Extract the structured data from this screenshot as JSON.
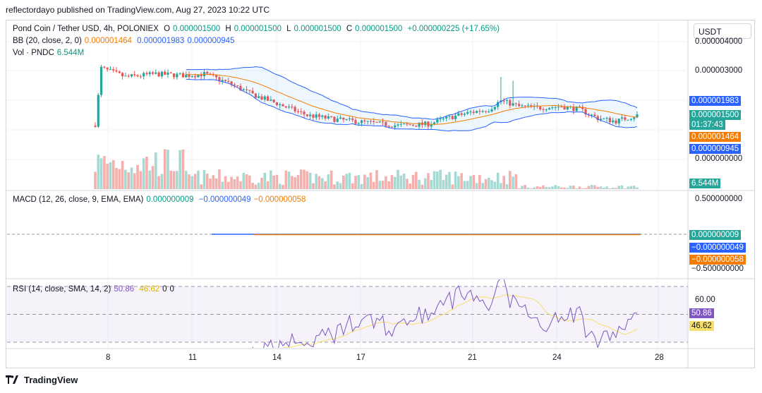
{
  "header": {
    "published_by": "reflectordayo published on TradingView.com, Aug 27, 2023 10:22 UTC"
  },
  "currency_button": "USDT",
  "legend": {
    "symbol": "Pond Coin / Tether USD, 4h, POLONIEX",
    "ohlc": {
      "o_label": "O",
      "o": "0.000001500",
      "h_label": "H",
      "h": "0.000001500",
      "l_label": "L",
      "l": "0.000001500",
      "c_label": "C",
      "c": "0.000001500",
      "change": "+0.000000225 (+17.65%)"
    },
    "bb_label": "BB (20, close, 2, 0)",
    "bb_basis": "0.000001464",
    "bb_upper": "0.000001983",
    "bb_lower": "0.000000945",
    "vol_label": "Vol · PNDC",
    "vol_value": "6.544M",
    "macd_label": "MACD (12, 26, close, 9, EMA, EMA)",
    "macd": "0.000000009",
    "macd_signal": "−0.000000049",
    "macd_hist": "−0.000000058",
    "rsi_label": "RSI (14, close, SMA, 14, 2)",
    "rsi": "50.86",
    "rsi_ma": "46.62",
    "rsi_extra1": "0",
    "rsi_extra2": "0"
  },
  "price_axis": {
    "ticks": [
      "0.000004000",
      "0.000003000",
      "0.000002000",
      "0.000001000",
      "0.000000000"
    ],
    "tags": {
      "bb_upper": "0.000001983",
      "last": "0.000001500",
      "countdown": "01:37:43",
      "bb_basis": "0.000001464",
      "bb_lower": "0.000000945",
      "volume": "6.544M"
    }
  },
  "macd_axis": {
    "ticks": [
      "0.500000000",
      "−0.500000000"
    ],
    "tags": [
      "0.000000009",
      "−0.000000049",
      "−0.000000058"
    ]
  },
  "rsi_axis": {
    "ticks": [
      "60.00"
    ],
    "tags": [
      "50.86",
      "46.62"
    ]
  },
  "time_axis": [
    "8",
    "11",
    "14",
    "17",
    "21",
    "24",
    "28"
  ],
  "colors": {
    "up": "#26a69a",
    "down": "#ef5350",
    "bb_band": "#2962ff",
    "bb_basis": "#f57c00",
    "rsi": "#7e57c2",
    "rsi_ma": "#f6df6b",
    "macd": "#2962ff",
    "macd_signal": "#f57c00"
  },
  "footer": {
    "brand": "TradingView"
  },
  "chart_data": {
    "type": "candlestick",
    "title": "Pond Coin / Tether USD, 4h, POLONIEX",
    "x_ticks": [
      "8",
      "11",
      "14",
      "17",
      "21",
      "24",
      "28"
    ],
    "price_range": [
      0,
      4e-06
    ],
    "candles_approx": [
      {
        "date_tick": "8",
        "close": 3e-06
      },
      {
        "date_tick": "11",
        "close": 2.9e-06
      },
      {
        "date_tick": "14",
        "close": 2.1e-06
      },
      {
        "date_tick": "17",
        "close": 1.4e-06
      },
      {
        "date_tick": "21",
        "close": 1.7e-06
      },
      {
        "date_tick": "24",
        "close": 1.7e-06
      },
      {
        "date_tick": "28",
        "close": 1.5e-06
      }
    ],
    "rsi": {
      "last": 50.86,
      "ma": 46.62,
      "upper_band": 70,
      "lower_band": 30
    },
    "volume_last": "6.544M"
  }
}
